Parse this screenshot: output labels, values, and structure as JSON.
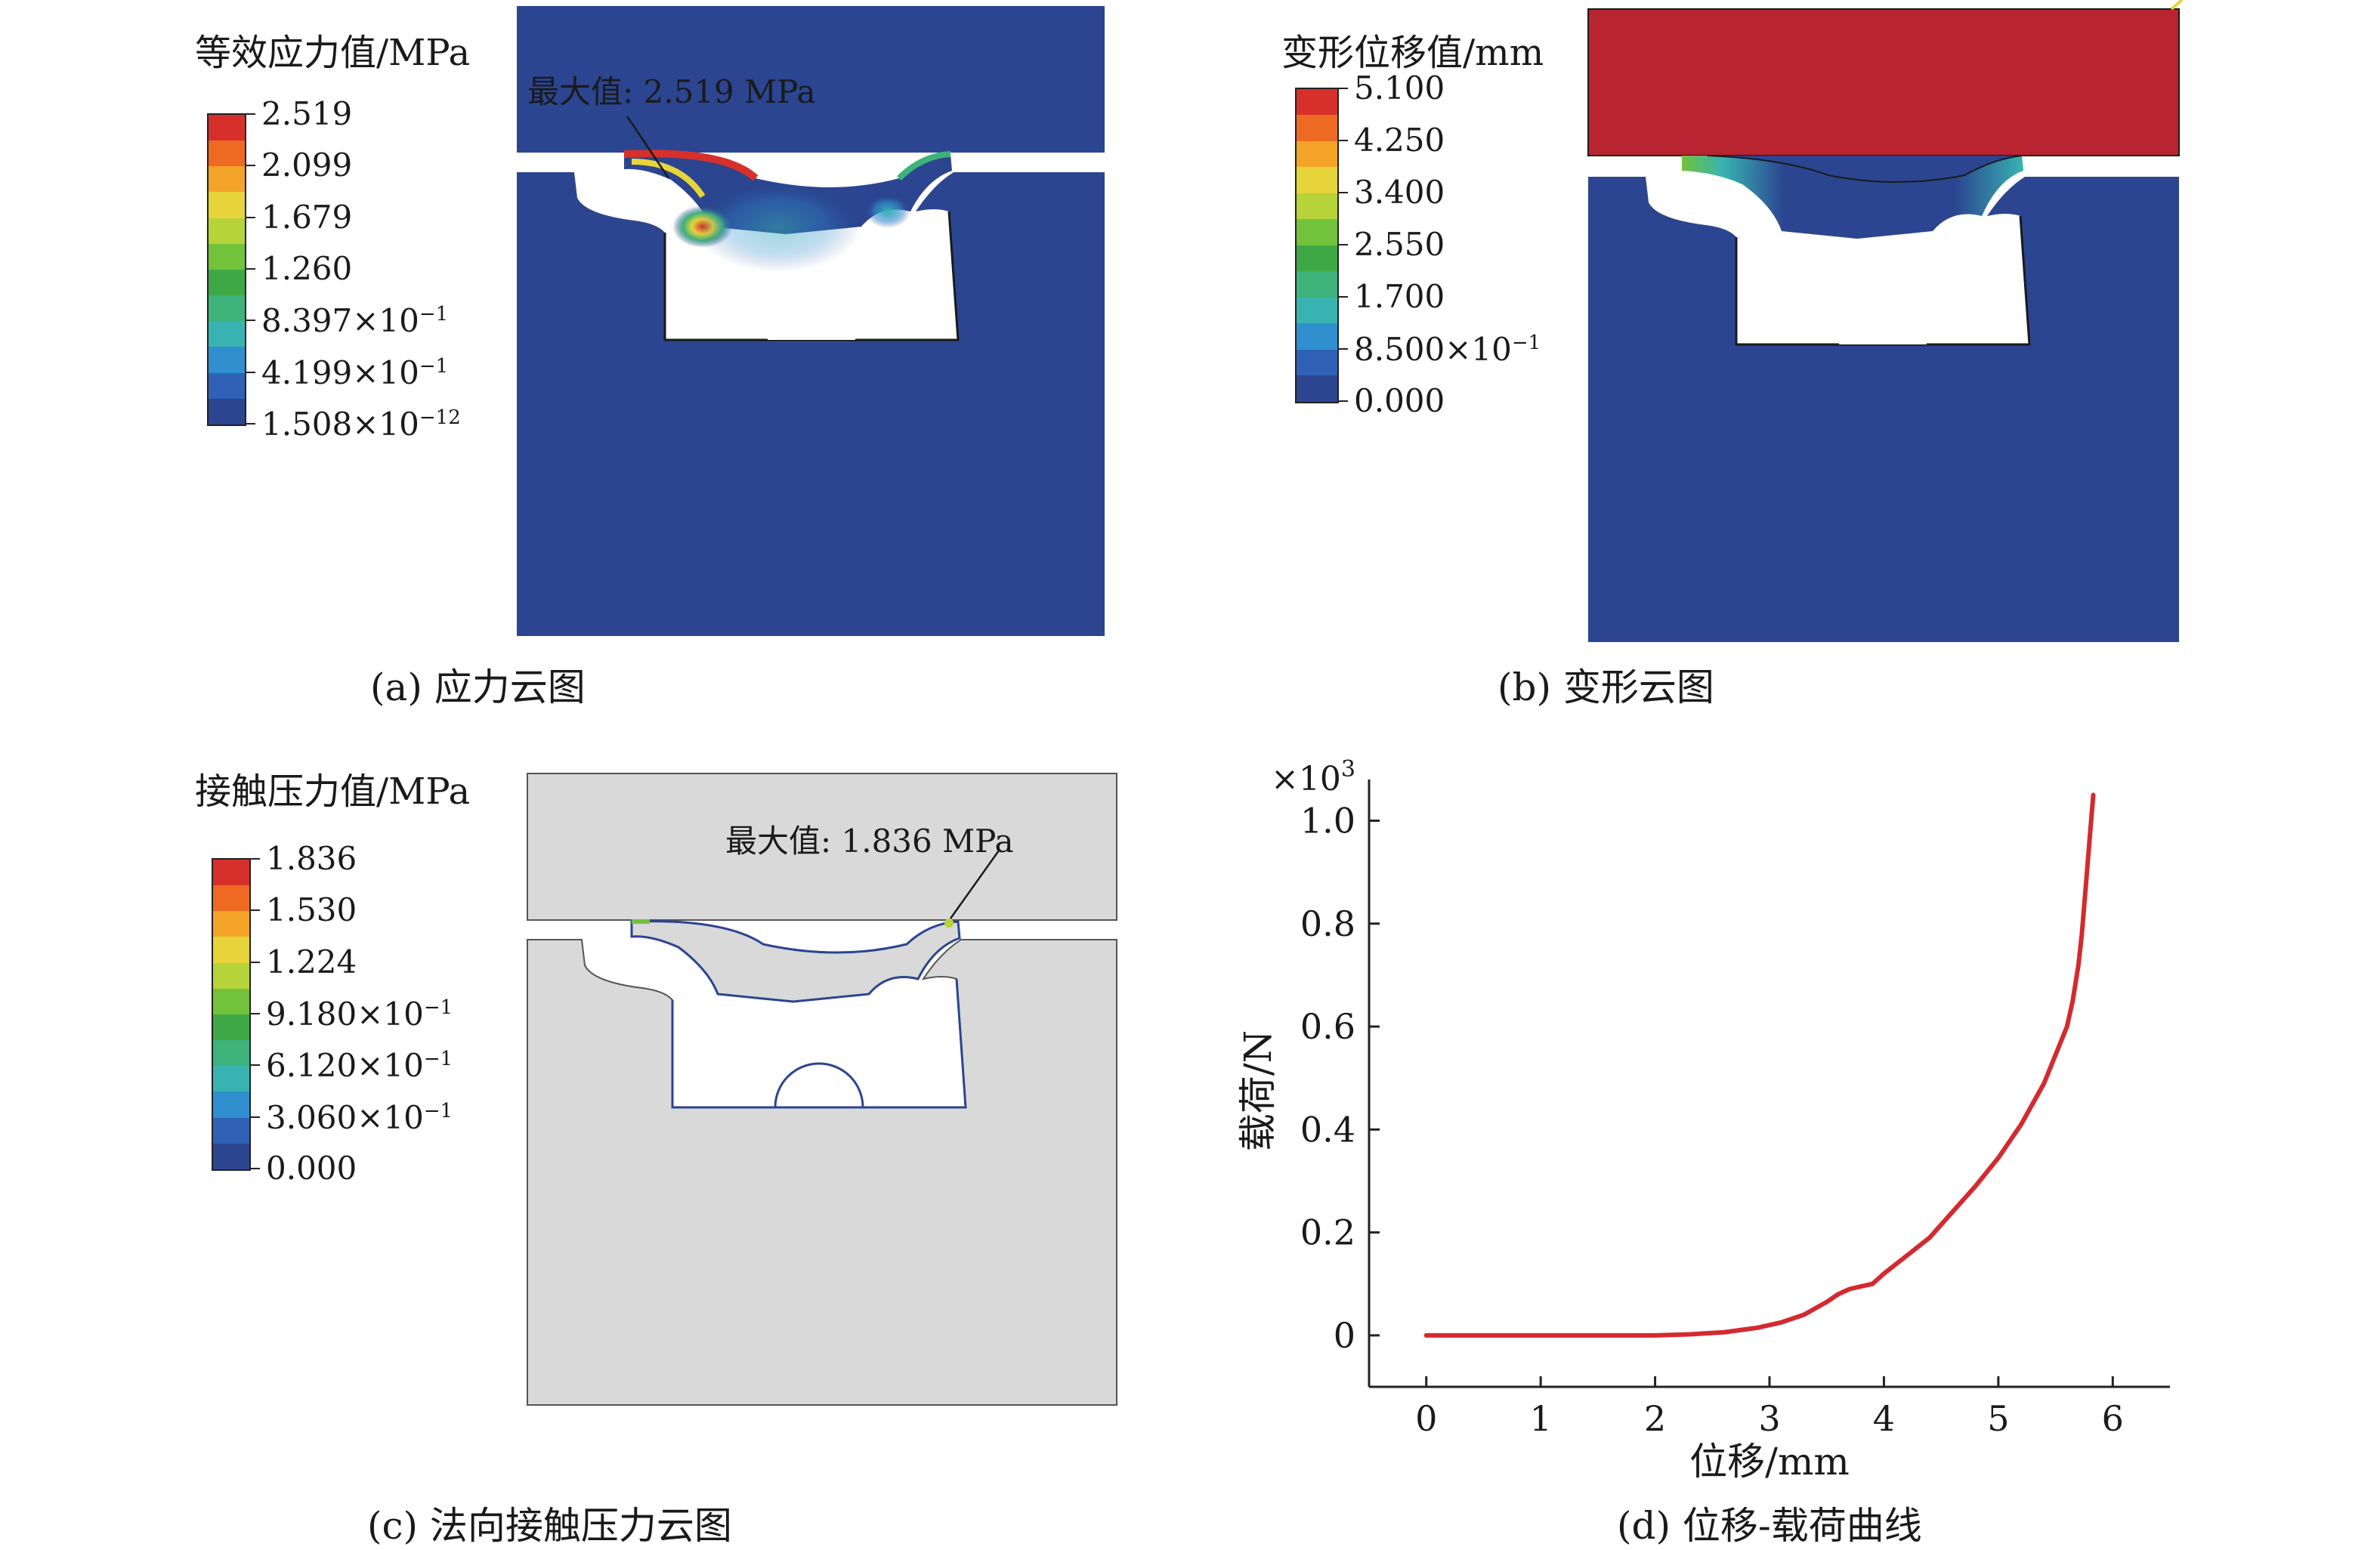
{
  "panel_a": {
    "legend_title": "等效应力值/MPa",
    "legend_ticks": [
      "2.519",
      "2.099",
      "1.679",
      "1.260",
      "8.397×10",
      "4.199×10",
      "1.508×10"
    ],
    "legend_exponents": [
      "",
      "",
      "",
      "",
      "−1",
      "−1",
      "−12"
    ],
    "max_annotation": "最大值: 2.519 MPa",
    "caption": "(a) 应力云图"
  },
  "panel_b": {
    "legend_title": "变形位移值/mm",
    "legend_ticks": [
      "5.100",
      "4.250",
      "3.400",
      "2.550",
      "1.700",
      "8.500×10",
      "0.000"
    ],
    "legend_exponents": [
      "",
      "",
      "",
      "",
      "",
      "−1",
      ""
    ],
    "caption": "(b) 变形云图"
  },
  "panel_c": {
    "legend_title": "接触压力值/MPa",
    "legend_ticks": [
      "1.836",
      "1.530",
      "1.224",
      "9.180×10",
      "6.120×10",
      "3.060×10",
      "0.000"
    ],
    "legend_exponents": [
      "",
      "",
      "",
      "−1",
      "−1",
      "−1",
      ""
    ],
    "max_annotation": "最大值: 1.836 MPa",
    "caption": "(c) 法向接触压力云图"
  },
  "colors": {
    "fe_blue": "#2b4590",
    "fe_red": "#b82530",
    "contact_gray": "#d9d9d9",
    "curve_red": "#d42a2f",
    "legend_scale": [
      "#d7302b",
      "#ee6a22",
      "#f3a428",
      "#e7d43a",
      "#b6d33a",
      "#72c23b",
      "#3ea845",
      "#3db27a",
      "#38b3b2",
      "#2f8fcf",
      "#2f62b6",
      "#2b4590"
    ]
  },
  "chart_data": {
    "type": "line",
    "title": "",
    "xlabel": "位移/mm",
    "ylabel": "载荷/N",
    "y_multiplier": "×10",
    "y_multiplier_exp": "3",
    "xlim": [
      -0.5,
      6.5
    ],
    "ylim": [
      -0.1,
      1.08
    ],
    "xticks": [
      0,
      1,
      2,
      3,
      4,
      5,
      6
    ],
    "yticks": [
      0,
      0.2,
      0.4,
      0.6,
      0.8,
      1.0
    ],
    "ytick_labels": [
      "0",
      "0.2",
      "0.4",
      "0.6",
      "0.8",
      "1.0"
    ],
    "grid": false,
    "caption": "(d) 位移-载荷曲线",
    "series": [
      {
        "x": [
          0.0,
          0.5,
          1.0,
          1.5,
          2.0,
          2.3,
          2.6,
          2.9,
          3.1,
          3.3,
          3.5,
          3.6,
          3.7,
          3.8,
          3.9,
          4.0,
          4.2,
          4.4,
          4.6,
          4.8,
          5.0,
          5.2,
          5.4,
          5.6,
          5.65,
          5.7,
          5.73,
          5.76,
          5.8,
          5.83
        ],
        "y": [
          0.0,
          0.0,
          0.0,
          0.0,
          0.0,
          0.002,
          0.006,
          0.015,
          0.025,
          0.04,
          0.065,
          0.08,
          0.09,
          0.095,
          0.1,
          0.12,
          0.155,
          0.19,
          0.24,
          0.29,
          0.345,
          0.41,
          0.49,
          0.6,
          0.65,
          0.72,
          0.78,
          0.86,
          0.97,
          1.05
        ]
      }
    ]
  }
}
